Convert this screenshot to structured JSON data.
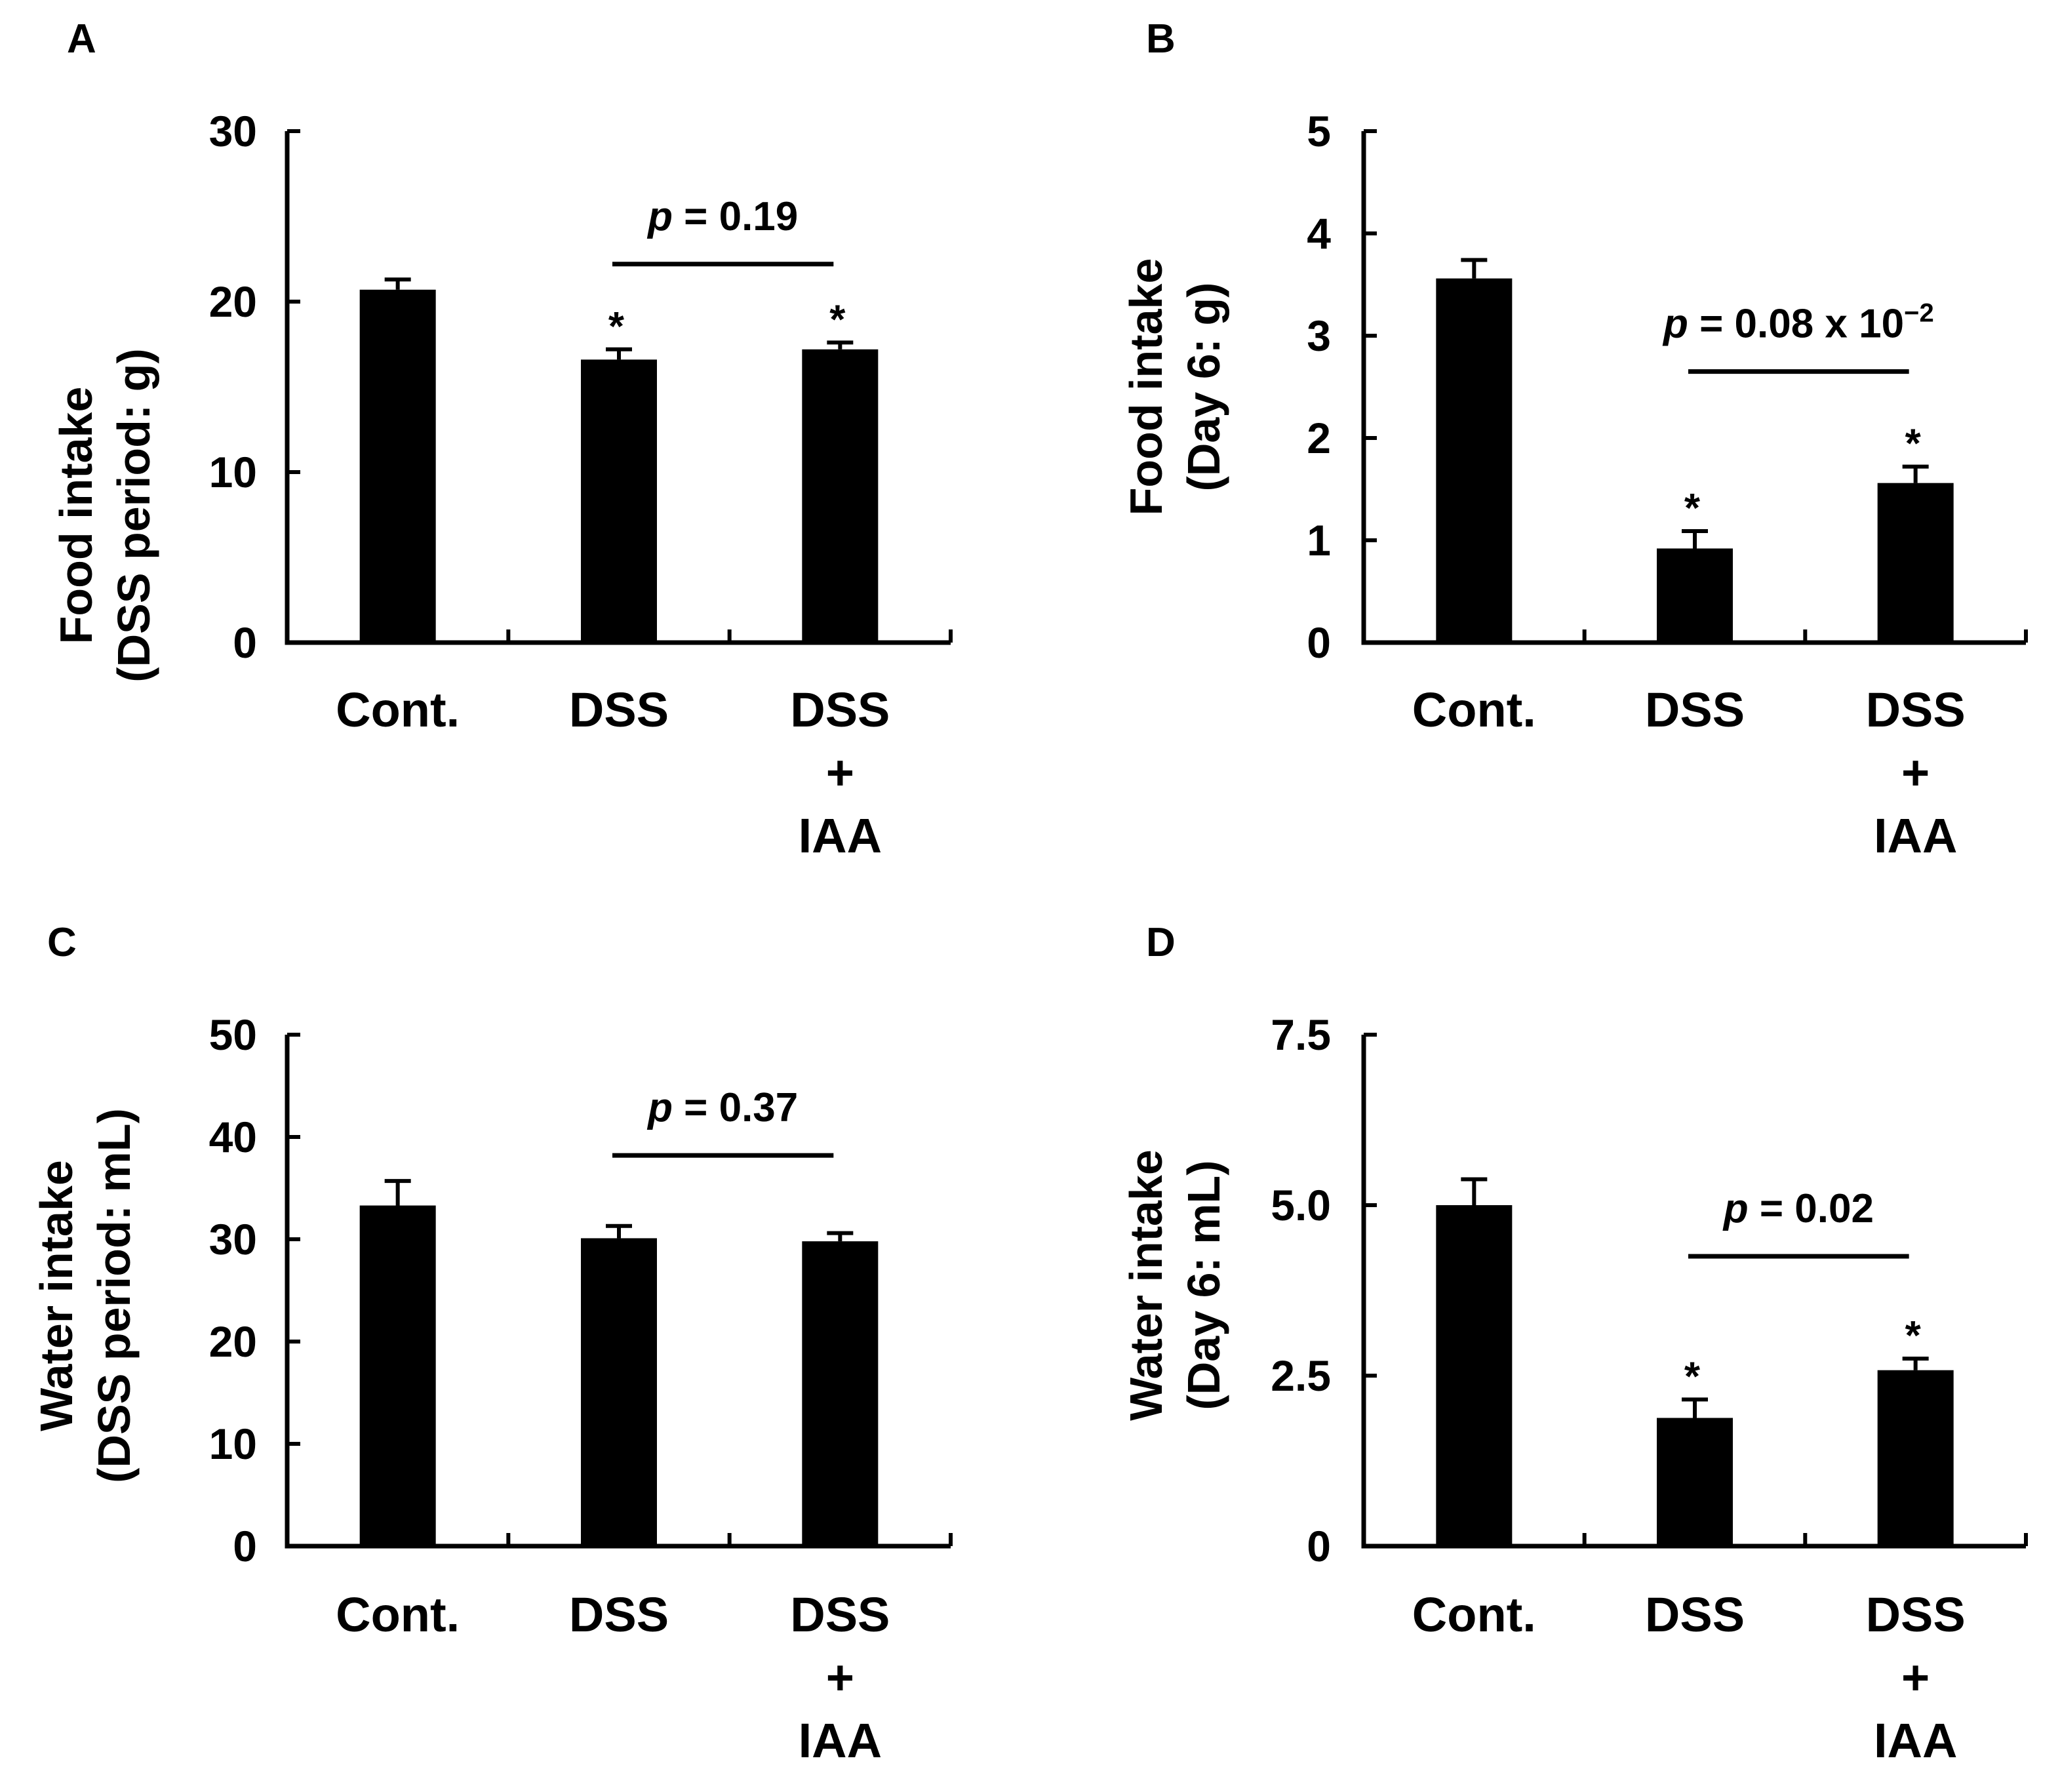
{
  "chart_data": [
    {
      "type": "bar",
      "panel": "A",
      "categories": [
        [
          "Cont."
        ],
        [
          "DSS"
        ],
        [
          "DSS",
          "+",
          "IAA"
        ]
      ],
      "values": [
        20.7,
        16.6,
        17.2
      ],
      "errors": [
        0.6,
        0.6,
        0.4
      ],
      "significance": [
        "",
        "*",
        "*"
      ],
      "ylabel": [
        "Food intake",
        "(DSS period: g)"
      ],
      "ylim": [
        0,
        30
      ],
      "yticks": [
        0,
        10,
        20,
        30
      ],
      "ytick_labels": [
        "0",
        "10",
        "20",
        "30"
      ],
      "comparison": {
        "from": 1,
        "to": 2,
        "p_symbol": "p",
        "p_text": " = 0.19",
        "p_sup": "",
        "y": 22.2
      }
    },
    {
      "type": "bar",
      "panel": "B",
      "categories": [
        [
          "Cont."
        ],
        [
          "DSS"
        ],
        [
          "DSS",
          "+",
          "IAA"
        ]
      ],
      "values": [
        3.56,
        0.92,
        1.56
      ],
      "errors": [
        0.18,
        0.17,
        0.16
      ],
      "significance": [
        "",
        "*",
        "*"
      ],
      "ylabel": [
        "Food intake",
        "(Day 6: g)"
      ],
      "ylim": [
        0,
        5
      ],
      "yticks": [
        0,
        1,
        2,
        3,
        4,
        5
      ],
      "ytick_labels": [
        "0",
        "1",
        "2",
        "3",
        "4",
        "5"
      ],
      "comparison": {
        "from": 1,
        "to": 2,
        "p_symbol": "p",
        "p_text": " = 0.08 x 10",
        "p_sup": "−2",
        "y": 2.65
      }
    },
    {
      "type": "bar",
      "panel": "C",
      "categories": [
        [
          "Cont."
        ],
        [
          "DSS"
        ],
        [
          "DSS",
          "+",
          "IAA"
        ]
      ],
      "values": [
        33.3,
        30.1,
        29.8
      ],
      "errors": [
        2.4,
        1.2,
        0.8
      ],
      "significance": [
        "",
        "",
        ""
      ],
      "ylabel": [
        "Water intake",
        "(DSS period: mL)"
      ],
      "ylim": [
        0,
        50
      ],
      "yticks": [
        0,
        10,
        20,
        30,
        40,
        50
      ],
      "ytick_labels": [
        "0",
        "10",
        "20",
        "30",
        "40",
        "50"
      ],
      "comparison": {
        "from": 1,
        "to": 2,
        "p_symbol": "p",
        "p_text": " = 0.37",
        "p_sup": "",
        "y": 38.2
      }
    },
    {
      "type": "bar",
      "panel": "D",
      "categories": [
        [
          "Cont."
        ],
        [
          "DSS"
        ],
        [
          "DSS",
          "+",
          "IAA"
        ]
      ],
      "values": [
        5.0,
        1.88,
        2.58
      ],
      "errors": [
        0.38,
        0.27,
        0.17
      ],
      "significance": [
        "",
        "*",
        "*"
      ],
      "ylabel": [
        "Water intake",
        "(Day 6: mL)"
      ],
      "ylim": [
        0,
        7.5
      ],
      "yticks": [
        0,
        2.5,
        5,
        7.5
      ],
      "ytick_labels": [
        "0",
        "2.5",
        "5.0",
        "7.5"
      ],
      "comparison": {
        "from": 1,
        "to": 2,
        "p_symbol": "p",
        "p_text": " = 0.02",
        "p_sup": "",
        "y": 4.25
      }
    }
  ]
}
